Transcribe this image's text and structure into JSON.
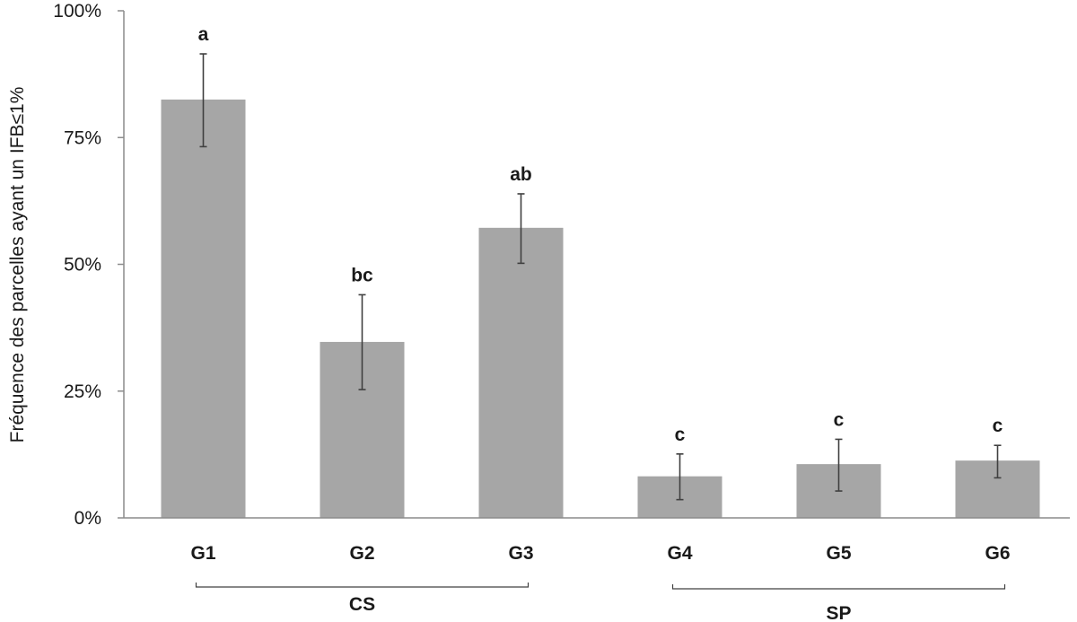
{
  "chart_data": {
    "type": "bar",
    "ylabel": "Fréquence des parcelles ayant un IFB≤1%",
    "xlabel": "",
    "ylim": [
      0,
      100
    ],
    "yticks": [
      0,
      25,
      50,
      75,
      100
    ],
    "ytick_labels": [
      "0%",
      "25%",
      "50%",
      "75%",
      "100%"
    ],
    "categories": [
      "G1",
      "G2",
      "G3",
      "G4",
      "G5",
      "G6"
    ],
    "values": [
      82.5,
      34.7,
      57.2,
      8.2,
      10.6,
      11.3
    ],
    "error_low": [
      73.2,
      25.3,
      50.2,
      3.6,
      5.3,
      7.9
    ],
    "error_high": [
      91.5,
      44.0,
      63.9,
      12.6,
      15.5,
      14.3
    ],
    "significance": [
      "a",
      "bc",
      "ab",
      "c",
      "c",
      "c"
    ],
    "groups": [
      {
        "name": "CS",
        "start": 0,
        "end": 2
      },
      {
        "name": "SP",
        "start": 3,
        "end": 5
      }
    ],
    "bar_color": "#a6a6a6",
    "error_color": "#404040",
    "grid": false,
    "legend": "none"
  }
}
